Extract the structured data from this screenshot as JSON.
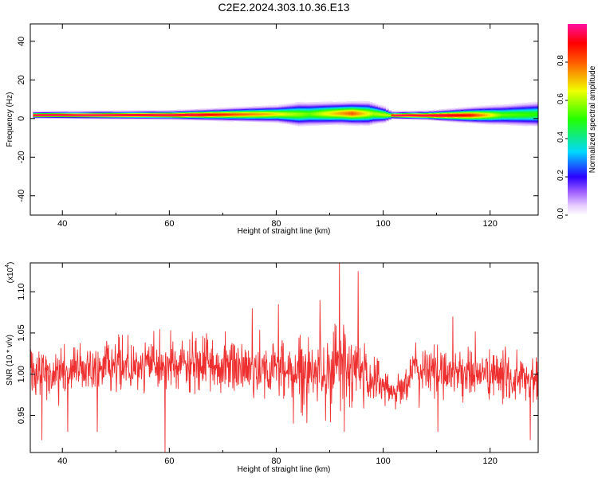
{
  "title": "C2E2.2024.303.10.36.E13",
  "colors": {
    "snr_line": "#ee3030",
    "frame": "#000000"
  },
  "chart_data": [
    {
      "type": "heatmap",
      "xlabel": "Height of straight line (km)",
      "ylabel": "Frequency (Hz)",
      "xlim": [
        34,
        129
      ],
      "ylim": [
        -50,
        49
      ],
      "x_ticks": [
        "40",
        "60",
        "80",
        "100",
        "120"
      ],
      "x_tick_values": [
        40,
        60,
        80,
        100,
        120
      ],
      "y_ticks": [
        "40",
        "20",
        "0",
        "-20",
        "-40"
      ],
      "y_tick_values": [
        40,
        20,
        0,
        -20,
        -40
      ],
      "colorbar": {
        "label": "Normalized spectral amplitude",
        "ticks": [
          "0.0",
          "0.2",
          "0.4",
          "0.6",
          "0.8"
        ],
        "tick_values": [
          0.0,
          0.2,
          0.4,
          0.6,
          0.8
        ],
        "range": [
          0,
          1
        ]
      },
      "band": {
        "center_freq": [
          [
            34.5,
            1.8
          ],
          [
            60,
            1.8
          ],
          [
            80,
            2.3
          ],
          [
            84,
            2.2
          ],
          [
            92,
            2.7
          ],
          [
            98,
            2.5
          ],
          [
            101,
            1.7
          ],
          [
            110,
            1.6
          ],
          [
            120,
            1.8
          ],
          [
            129,
            2.2
          ]
        ],
        "half_width": [
          [
            34.5,
            1.2
          ],
          [
            60,
            1.6
          ],
          [
            66,
            2.0
          ],
          [
            80,
            3.2
          ],
          [
            84,
            4.5
          ],
          [
            92,
            4.2
          ],
          [
            97,
            4.5
          ],
          [
            100,
            3.0
          ],
          [
            101.5,
            1.3
          ],
          [
            108,
            1.6
          ],
          [
            120,
            3.5
          ],
          [
            129,
            4.8
          ]
        ],
        "peak_amplitude": [
          [
            34.5,
            1.0
          ],
          [
            60,
            0.98
          ],
          [
            66,
            0.95
          ],
          [
            72,
            0.82
          ],
          [
            78,
            0.72
          ],
          [
            82,
            0.62
          ],
          [
            86,
            0.55
          ],
          [
            90,
            0.68
          ],
          [
            94,
            0.8
          ],
          [
            98,
            0.6
          ],
          [
            101,
            0.62
          ],
          [
            101.6,
            1.0
          ],
          [
            110,
            0.97
          ],
          [
            116,
            0.88
          ],
          [
            122,
            0.55
          ],
          [
            129,
            0.5
          ]
        ]
      }
    },
    {
      "type": "line",
      "xlabel": "Height of straight line (km)",
      "ylabel": "SNR (10 * v/v)",
      "y_scale_label": "(x10",
      "y_scale_exponent": "4",
      "y_scale_suffix": ")",
      "xlim": [
        34,
        129
      ],
      "ylim": [
        0.905,
        1.135
      ],
      "x_ticks": [
        "40",
        "60",
        "80",
        "100",
        "120"
      ],
      "x_tick_values": [
        40,
        60,
        80,
        100,
        120
      ],
      "y_ticks": [
        "1.10",
        "1.05",
        "1.00",
        "0.95"
      ],
      "y_tick_values": [
        1.1,
        1.05,
        1.0,
        0.95
      ],
      "series": [
        {
          "noise_profile": {
            "x_step": 0.07,
            "mean": [
              [
                34,
                1.0
              ],
              [
                40,
                1.005
              ],
              [
                55,
                1.01
              ],
              [
                70,
                1.01
              ],
              [
                80,
                1.005
              ],
              [
                88,
                1.005
              ],
              [
                92,
                1.01
              ],
              [
                96,
                1.0
              ],
              [
                100,
                0.99
              ],
              [
                102,
                0.975
              ],
              [
                104,
                0.99
              ],
              [
                106,
                1.005
              ],
              [
                120,
                1.0
              ],
              [
                129,
                0.99
              ]
            ],
            "amplitude": [
              [
                34,
                0.03
              ],
              [
                70,
                0.033
              ],
              [
                82,
                0.035
              ],
              [
                88,
                0.04
              ],
              [
                92,
                0.055
              ],
              [
                96,
                0.045
              ],
              [
                99,
                0.03
              ],
              [
                102,
                0.015
              ],
              [
                105,
                0.028
              ],
              [
                129,
                0.03
              ]
            ]
          },
          "spikes": [
            [
              91.8,
              1.135
            ],
            [
              95.3,
              1.125
            ],
            [
              88.2,
              1.09
            ],
            [
              80.4,
              1.085
            ],
            [
              59.2,
              0.905
            ],
            [
              46.5,
              0.93
            ],
            [
              36.2,
              0.92
            ],
            [
              127.5,
              0.92
            ],
            [
              75.5,
              1.08
            ],
            [
              41.0,
              0.93
            ],
            [
              110.2,
              0.93
            ],
            [
              113.0,
              1.07
            ],
            [
              92.7,
              0.93
            ],
            [
              83.2,
              0.94
            ]
          ]
        }
      ]
    }
  ]
}
